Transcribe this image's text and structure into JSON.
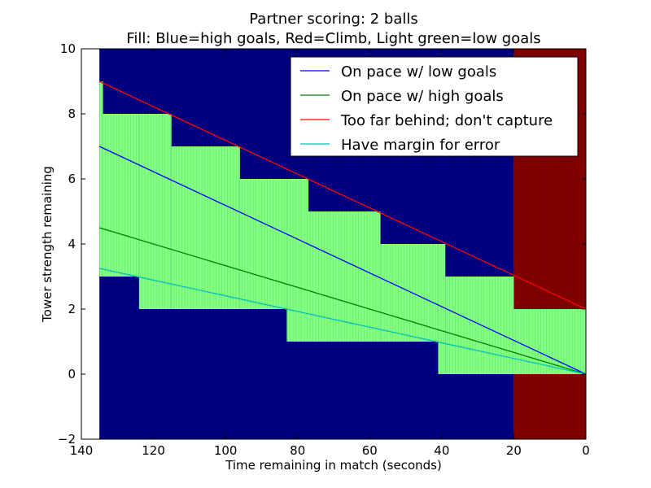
{
  "chart_data": {
    "type": "line",
    "title": "Partner scoring: 2 balls",
    "subtitle": "Fill: Blue=high goals, Red=Climb, Light green=low goals",
    "xlabel": "Time remaining in match (seconds)",
    "ylabel": "Tower strength remaining",
    "xlim": [
      140,
      0
    ],
    "ylim": [
      -2,
      10
    ],
    "x_inverted": true,
    "x_ticks": [
      140,
      120,
      100,
      80,
      60,
      40,
      20,
      0
    ],
    "x_tick_labels": [
      "140",
      "120",
      "100",
      "80",
      "60",
      "40",
      "20",
      "0"
    ],
    "y_ticks": [
      -2,
      0,
      2,
      4,
      6,
      8,
      10
    ],
    "y_tick_labels": [
      "−2",
      "0",
      "2",
      "4",
      "6",
      "8",
      "10"
    ],
    "grid": false,
    "legend_position": "top-right",
    "fill_colors": {
      "high_goals": "#000080",
      "climb": "#800000",
      "low_goals": "#80ff80"
    },
    "climb_region": {
      "x_from": 20,
      "x_to": 0,
      "y_from": -2,
      "y_to": 10
    },
    "low_goal_band": {
      "steps": [
        {
          "x_from": 135,
          "x_to": 134,
          "y_low": 3,
          "y_high": 9
        },
        {
          "x_from": 134,
          "x_to": 124,
          "y_low": 3,
          "y_high": 8
        },
        {
          "x_from": 124,
          "x_to": 115,
          "y_low": 2,
          "y_high": 8
        },
        {
          "x_from": 115,
          "x_to": 96,
          "y_low": 2,
          "y_high": 7
        },
        {
          "x_from": 96,
          "x_to": 83,
          "y_low": 2,
          "y_high": 6
        },
        {
          "x_from": 83,
          "x_to": 77,
          "y_low": 1,
          "y_high": 6
        },
        {
          "x_from": 77,
          "x_to": 57,
          "y_low": 1,
          "y_high": 5
        },
        {
          "x_from": 57,
          "x_to": 41,
          "y_low": 1,
          "y_high": 4
        },
        {
          "x_from": 41,
          "x_to": 39,
          "y_low": 0,
          "y_high": 4
        },
        {
          "x_from": 39,
          "x_to": 20,
          "y_low": 0,
          "y_high": 3
        },
        {
          "x_from": 20,
          "x_to": 0,
          "y_low": 0,
          "y_high": 2
        }
      ]
    },
    "series": [
      {
        "name": "On pace w/ low goals",
        "color": "#0000ff",
        "x": [
          135,
          0
        ],
        "y": [
          7,
          0
        ]
      },
      {
        "name": "On pace w/ high goals",
        "color": "#008000",
        "x": [
          135,
          0
        ],
        "y": [
          4.5,
          0
        ]
      },
      {
        "name": "Too far behind; don't capture",
        "color": "#ff0000",
        "x": [
          135,
          0
        ],
        "y": [
          9,
          2
        ]
      },
      {
        "name": "Have margin for error",
        "color": "#00bfbf",
        "x": [
          135,
          0
        ],
        "y": [
          3.25,
          0
        ]
      }
    ]
  }
}
